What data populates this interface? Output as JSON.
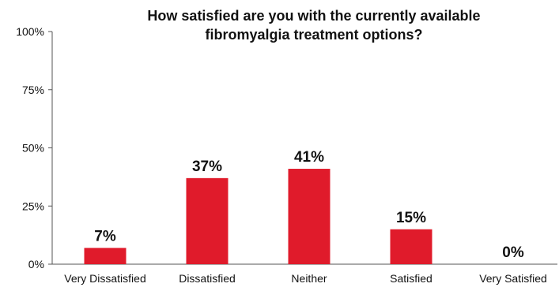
{
  "chart_data": {
    "type": "bar",
    "title_lines": [
      "How satisfied are you with the currently available",
      "fibromyalgia treatment options?"
    ],
    "categories": [
      "Very Dissatisfied",
      "Dissatisfied",
      "Neither",
      "Satisfied",
      "Very Satisfied"
    ],
    "values": [
      7,
      37,
      41,
      15,
      0
    ],
    "data_labels": [
      "7%",
      "37%",
      "41%",
      "15%",
      "0%"
    ],
    "yticks": [
      0,
      25,
      50,
      75,
      100
    ],
    "ytick_labels": [
      "0%",
      "25%",
      "50%",
      "75%",
      "100%"
    ],
    "ylim": [
      0,
      100
    ],
    "xlabel": "",
    "ylabel": "",
    "grid": false,
    "legend": "none",
    "bar_color": "#e01b2b",
    "axis_color": "#555555"
  }
}
